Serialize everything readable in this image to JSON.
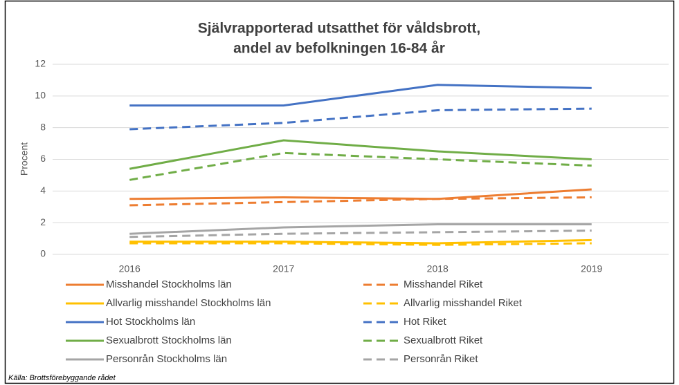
{
  "chart_data": {
    "type": "line",
    "title": [
      "Självrapporterad utsatthet för våldsbrott,",
      "andel av befolkningen 16-84 år"
    ],
    "ylabel": "Procent",
    "categories": [
      "2016",
      "2017",
      "2018",
      "2019"
    ],
    "ylim": [
      0,
      12
    ],
    "yticks": [
      0,
      2,
      4,
      6,
      8,
      10,
      12
    ],
    "grid": true,
    "series": [
      {
        "name": "Misshandel Stockholms län",
        "color": "#ed7d31",
        "dashed": false,
        "values": [
          3.5,
          3.6,
          3.5,
          4.1
        ]
      },
      {
        "name": "Misshandel Riket",
        "color": "#ed7d31",
        "dashed": true,
        "values": [
          3.1,
          3.3,
          3.5,
          3.6
        ]
      },
      {
        "name": "Allvarlig misshandel Stockholms län",
        "color": "#ffc000",
        "dashed": false,
        "values": [
          0.8,
          0.8,
          0.7,
          0.9
        ]
      },
      {
        "name": "Allvarlig misshandel Riket",
        "color": "#ffc000",
        "dashed": true,
        "values": [
          0.7,
          0.7,
          0.6,
          0.7
        ]
      },
      {
        "name": "Hot Stockholms län",
        "color": "#4472c4",
        "dashed": false,
        "values": [
          9.4,
          9.4,
          10.7,
          10.5
        ]
      },
      {
        "name": "Hot Riket",
        "color": "#4472c4",
        "dashed": true,
        "values": [
          7.9,
          8.3,
          9.1,
          9.2
        ]
      },
      {
        "name": "Sexualbrott Stockholms län",
        "color": "#70ad47",
        "dashed": false,
        "values": [
          5.4,
          7.2,
          6.5,
          6.0
        ]
      },
      {
        "name": "Sexualbrott Riket",
        "color": "#70ad47",
        "dashed": true,
        "values": [
          4.7,
          6.4,
          6.0,
          5.6
        ]
      },
      {
        "name": "Personrån Stockholms län",
        "color": "#a5a5a5",
        "dashed": false,
        "values": [
          1.3,
          1.7,
          1.9,
          1.9
        ]
      },
      {
        "name": "Personrån Riket",
        "color": "#a5a5a5",
        "dashed": true,
        "values": [
          1.1,
          1.3,
          1.4,
          1.5
        ]
      }
    ],
    "source": "Källa: Brottsförebyggande rådet"
  }
}
